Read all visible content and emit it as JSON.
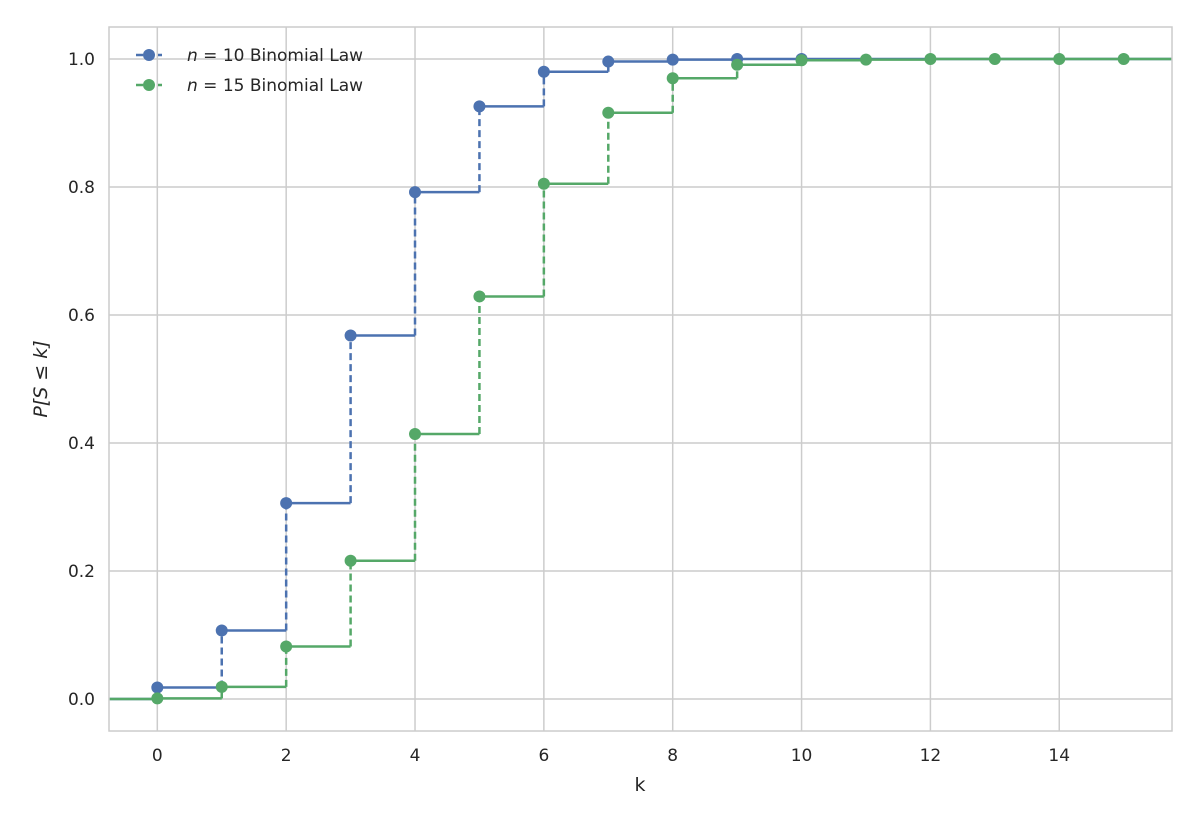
{
  "chart_data": {
    "type": "line",
    "title": "",
    "xlabel": "k",
    "ylabel": "P[S ≤ k]",
    "xlim": [
      -0.75,
      15.75
    ],
    "ylim": [
      -0.05,
      1.05
    ],
    "xticks": [
      "0",
      "2",
      "4",
      "6",
      "8",
      "10",
      "12",
      "14"
    ],
    "yticks": [
      "0.0",
      "0.2",
      "0.4",
      "0.6",
      "0.8",
      "1.0"
    ],
    "grid": true,
    "legend_position": "top-left",
    "series": [
      {
        "name": "n = 10 Binomial Law",
        "legend_prefix": "n",
        "legend_rest": " = 10 Binomial Law",
        "color": "#4c72b0",
        "x": [
          0,
          1,
          2,
          3,
          4,
          5,
          6,
          7,
          8,
          9,
          10
        ],
        "y": [
          0.018,
          0.107,
          0.306,
          0.568,
          0.792,
          0.926,
          0.98,
          0.996,
          0.999,
          1.0,
          1.0
        ]
      },
      {
        "name": "n = 15 Binomial Law",
        "legend_prefix": "n",
        "legend_rest": " = 15 Binomial Law",
        "color": "#55a868",
        "x": [
          0,
          1,
          2,
          3,
          4,
          5,
          6,
          7,
          8,
          9,
          10,
          11,
          12,
          13,
          14,
          15
        ],
        "y": [
          0.001,
          0.019,
          0.082,
          0.216,
          0.414,
          0.629,
          0.805,
          0.916,
          0.97,
          0.991,
          0.998,
          0.999,
          1.0,
          1.0,
          1.0,
          1.0
        ]
      }
    ]
  }
}
